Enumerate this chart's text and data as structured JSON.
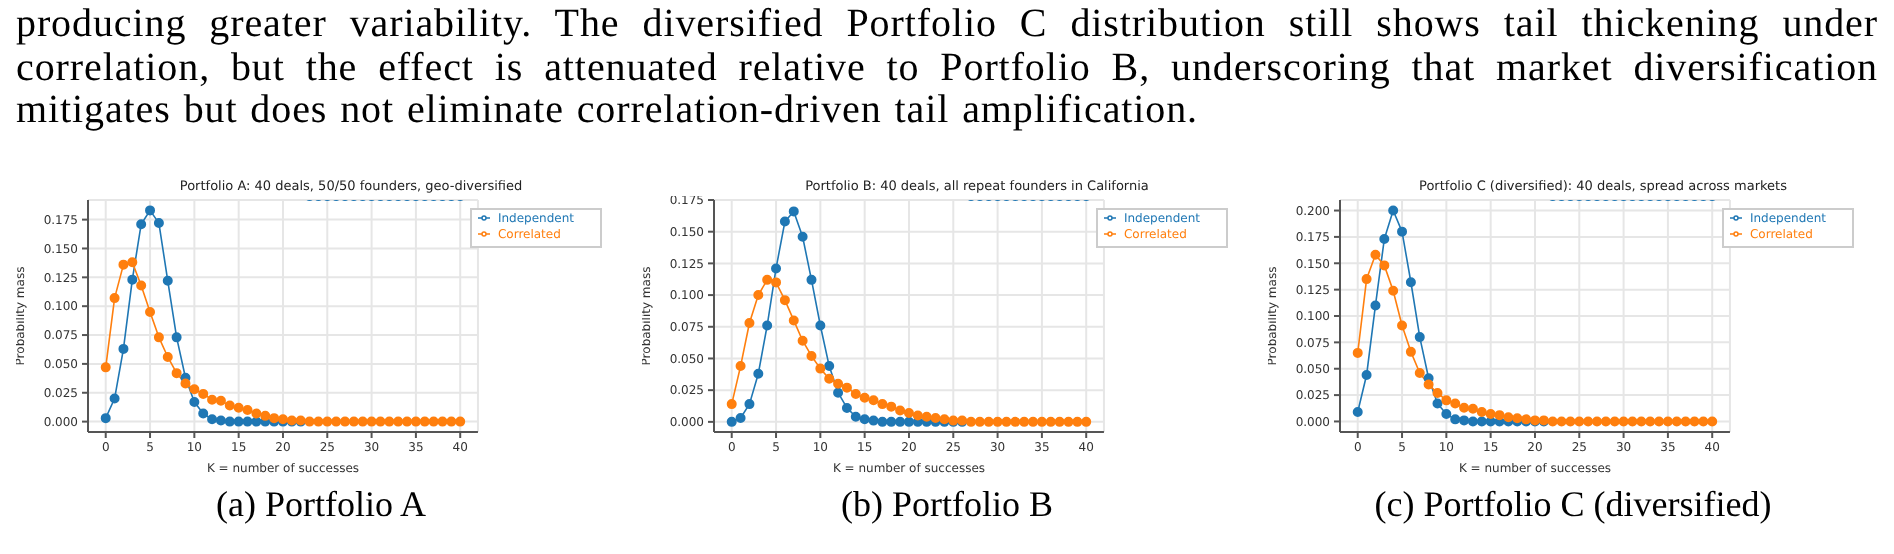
{
  "chart_data": [
    {
      "type": "line",
      "title": "Portfolio A: 40 deals, 50/50 founders, geo-diversified",
      "xlabel": "K = number of successes",
      "ylabel": "Probability mass",
      "annotations": [
        "producing greater variability. The diversified Portfolio C distribution still shows tail thickening under correlation, but the effect is attenuated relative to Portfolio B, underscoring that market diversification mitigates but does not eliminate correlation-driven tail amplification.",
        "(a) Portfolio A"
      ],
      "x": [
        0,
        1,
        2,
        3,
        4,
        5,
        6,
        7,
        8,
        9,
        10,
        11,
        12,
        13,
        14,
        15,
        16,
        17,
        18,
        19,
        20,
        21,
        22,
        23,
        24,
        25,
        26,
        27,
        28,
        29,
        30,
        31,
        32,
        33,
        34,
        35,
        36,
        37,
        38,
        39,
        40
      ],
      "xlim": [
        -2,
        42
      ],
      "xticks": [
        0,
        5,
        10,
        15,
        20,
        25,
        30,
        35,
        40
      ],
      "ylim": [
        -0.009,
        0.192
      ],
      "yticks": [
        {
          "value": 0,
          "label": "0.000"
        },
        {
          "value": 0.025,
          "label": "0.025"
        },
        {
          "value": 0.05,
          "label": "0.050"
        },
        {
          "value": 0.075,
          "label": "0.075"
        },
        {
          "value": 0.1,
          "label": "0.100"
        },
        {
          "value": 0.125,
          "label": "0.125"
        },
        {
          "value": 0.15,
          "label": "0.150"
        },
        {
          "value": 0.175,
          "label": "0.175"
        }
      ],
      "grid": true,
      "legend": "top right",
      "marker": "circle",
      "series": [
        {
          "name": "Independent",
          "color": "#1f77b4",
          "values": [
            0.003,
            0.02,
            0.063,
            0.123,
            0.171,
            0.183,
            0.172,
            0.122,
            0.073,
            0.038,
            0.017,
            0.007,
            0.002,
            0.001,
            0,
            0,
            0,
            0,
            0,
            0,
            0,
            0,
            0,
            null,
            null,
            null,
            null,
            null,
            null,
            null,
            null,
            null,
            null,
            null,
            null,
            null,
            null,
            null,
            null,
            null,
            null
          ]
        },
        {
          "name": "Correlated",
          "color": "#ff7f0e",
          "values": [
            0.047,
            0.107,
            0.136,
            0.138,
            0.118,
            0.095,
            0.073,
            0.056,
            0.042,
            0.033,
            0.028,
            0.024,
            0.019,
            0.018,
            0.014,
            0.012,
            0.01,
            0.007,
            0.005,
            0.003,
            0.002,
            0.001,
            0.001,
            0,
            0,
            0,
            0,
            0,
            0,
            0,
            0,
            0,
            0,
            0,
            0,
            0,
            0,
            0,
            0,
            0,
            0
          ]
        }
      ]
    },
    {
      "type": "line",
      "title": "Portfolio B: 40 deals, all repeat founders in California",
      "xlabel": "K = number of successes",
      "ylabel": "Probability mass",
      "annotations": [
        "(b) Portfolio B"
      ],
      "x": [
        0,
        1,
        2,
        3,
        4,
        5,
        6,
        7,
        8,
        9,
        10,
        11,
        12,
        13,
        14,
        15,
        16,
        17,
        18,
        19,
        20,
        21,
        22,
        23,
        24,
        25,
        26,
        27,
        28,
        29,
        30,
        31,
        32,
        33,
        34,
        35,
        36,
        37,
        38,
        39,
        40
      ],
      "xlim": [
        -2,
        42
      ],
      "xticks": [
        0,
        5,
        10,
        15,
        20,
        25,
        30,
        35,
        40
      ],
      "ylim": [
        -0.008,
        0.175
      ],
      "yticks": [
        {
          "value": 0,
          "label": "0.000"
        },
        {
          "value": 0.025,
          "label": "0.025"
        },
        {
          "value": 0.05,
          "label": "0.050"
        },
        {
          "value": 0.075,
          "label": "0.075"
        },
        {
          "value": 0.1,
          "label": "0.100"
        },
        {
          "value": 0.125,
          "label": "0.125"
        },
        {
          "value": 0.15,
          "label": "0.150"
        },
        {
          "value": 0.175,
          "label": "0.175"
        }
      ],
      "grid": true,
      "legend": "top right",
      "marker": "circle",
      "series": [
        {
          "name": "Independent",
          "color": "#1f77b4",
          "values": [
            0,
            0.003,
            0.014,
            0.038,
            0.076,
            0.121,
            0.158,
            0.166,
            0.146,
            0.112,
            0.076,
            0.044,
            0.023,
            0.011,
            0.004,
            0.002,
            0.001,
            0,
            0,
            0,
            0,
            0,
            0,
            0,
            0,
            0,
            0,
            null,
            null,
            null,
            null,
            null,
            null,
            null,
            null,
            null,
            null,
            null,
            null,
            null,
            null
          ]
        },
        {
          "name": "Correlated",
          "color": "#ff7f0e",
          "values": [
            0.014,
            0.044,
            0.078,
            0.1,
            0.112,
            0.11,
            0.096,
            0.08,
            0.064,
            0.052,
            0.042,
            0.034,
            0.03,
            0.027,
            0.022,
            0.019,
            0.017,
            0.014,
            0.012,
            0.009,
            0.007,
            0.005,
            0.004,
            0.003,
            0.002,
            0.001,
            0.001,
            0,
            0,
            0,
            0,
            0,
            0,
            0,
            0,
            0,
            0,
            0,
            0,
            0,
            0
          ]
        }
      ]
    },
    {
      "type": "line",
      "title": "Portfolio C (diversified): 40 deals, spread across markets",
      "xlabel": "K = number of successes",
      "ylabel": "Probability mass",
      "annotations": [
        "(c) Portfolio C (diversified)"
      ],
      "x": [
        0,
        1,
        2,
        3,
        4,
        5,
        6,
        7,
        8,
        9,
        10,
        11,
        12,
        13,
        14,
        15,
        16,
        17,
        18,
        19,
        20,
        21,
        22,
        23,
        24,
        25,
        26,
        27,
        28,
        29,
        30,
        31,
        32,
        33,
        34,
        35,
        36,
        37,
        38,
        39,
        40
      ],
      "xlim": [
        -2,
        42
      ],
      "xticks": [
        0,
        5,
        10,
        15,
        20,
        25,
        30,
        35,
        40
      ],
      "ylim": [
        -0.01,
        0.21
      ],
      "yticks": [
        {
          "value": 0,
          "label": "0.000"
        },
        {
          "value": 0.025,
          "label": "0.025"
        },
        {
          "value": 0.05,
          "label": "0.050"
        },
        {
          "value": 0.075,
          "label": "0.075"
        },
        {
          "value": 0.1,
          "label": "0.100"
        },
        {
          "value": 0.125,
          "label": "0.125"
        },
        {
          "value": 0.15,
          "label": "0.150"
        },
        {
          "value": 0.175,
          "label": "0.175"
        },
        {
          "value": 0.2,
          "label": "0.200"
        }
      ],
      "grid": true,
      "legend": "top right",
      "marker": "circle",
      "series": [
        {
          "name": "Independent",
          "color": "#1f77b4",
          "values": [
            0.009,
            0.044,
            0.11,
            0.173,
            0.2,
            0.18,
            0.132,
            0.08,
            0.041,
            0.017,
            0.007,
            0.002,
            0.001,
            0,
            0,
            0,
            0,
            0,
            0,
            0,
            0,
            0,
            null,
            null,
            null,
            null,
            null,
            null,
            null,
            null,
            null,
            null,
            null,
            null,
            null,
            null,
            null,
            null,
            null,
            null,
            null
          ]
        },
        {
          "name": "Correlated",
          "color": "#ff7f0e",
          "values": [
            0.065,
            0.135,
            0.158,
            0.148,
            0.124,
            0.091,
            0.066,
            0.046,
            0.035,
            0.027,
            0.02,
            0.017,
            0.013,
            0.012,
            0.009,
            0.007,
            0.006,
            0.004,
            0.003,
            0.002,
            0.001,
            0.001,
            0,
            0,
            0,
            0,
            0,
            0,
            0,
            0,
            0,
            0,
            0,
            0,
            0,
            0,
            0,
            0,
            0,
            0,
            0
          ]
        }
      ]
    }
  ]
}
